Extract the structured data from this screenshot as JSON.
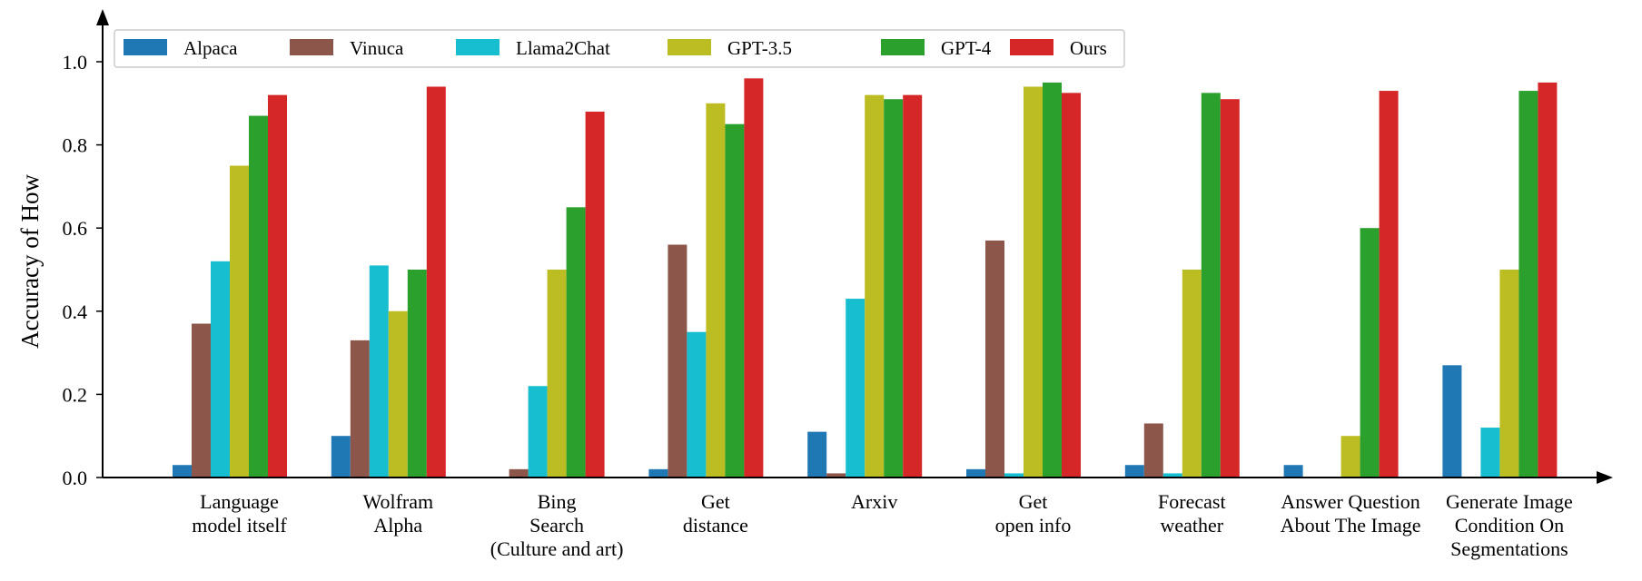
{
  "chart_data": {
    "type": "bar",
    "ylabel": "Accuracy of How",
    "xlabel": "",
    "ylim": [
      0,
      1.1
    ],
    "yticks": [
      "0.0",
      "0.2",
      "0.4",
      "0.6",
      "0.8",
      "1.0"
    ],
    "legend_position": "top-left",
    "grid": false,
    "categories": [
      [
        "Language",
        "model itself"
      ],
      [
        "Wolfram",
        "Alpha"
      ],
      [
        "Bing",
        "Search",
        "(Culture and art)"
      ],
      [
        "Get",
        "distance"
      ],
      [
        "Arxiv"
      ],
      [
        "Get",
        "open info"
      ],
      [
        "Forecast",
        "weather"
      ],
      [
        "Answer Question",
        "About The Image"
      ],
      [
        "Generate Image",
        "Condition On",
        "Segmentations"
      ]
    ],
    "series": [
      {
        "name": "Alpaca",
        "color": "#1f77b4",
        "values": [
          0.03,
          0.1,
          0.0,
          0.02,
          0.11,
          0.02,
          0.03,
          0.03,
          0.27
        ]
      },
      {
        "name": "Vinuca",
        "color": "#8c564b",
        "values": [
          0.37,
          0.33,
          0.02,
          0.56,
          0.01,
          0.57,
          0.13,
          0.0,
          0.0
        ]
      },
      {
        "name": "Llama2Chat",
        "color": "#17becf",
        "values": [
          0.52,
          0.51,
          0.22,
          0.35,
          0.43,
          0.01,
          0.01,
          0.0,
          0.12
        ]
      },
      {
        "name": "GPT-3.5",
        "color": "#bcbd22",
        "values": [
          0.75,
          0.4,
          0.5,
          0.9,
          0.92,
          0.94,
          0.5,
          0.1,
          0.5
        ]
      },
      {
        "name": "GPT-4",
        "color": "#2ca02c",
        "values": [
          0.87,
          0.5,
          0.65,
          0.85,
          0.91,
          0.95,
          0.925,
          0.6,
          0.93
        ]
      },
      {
        "name": "Ours",
        "color": "#d62728",
        "values": [
          0.92,
          0.94,
          0.88,
          0.96,
          0.92,
          0.925,
          0.91,
          0.93,
          0.95
        ]
      }
    ]
  }
}
